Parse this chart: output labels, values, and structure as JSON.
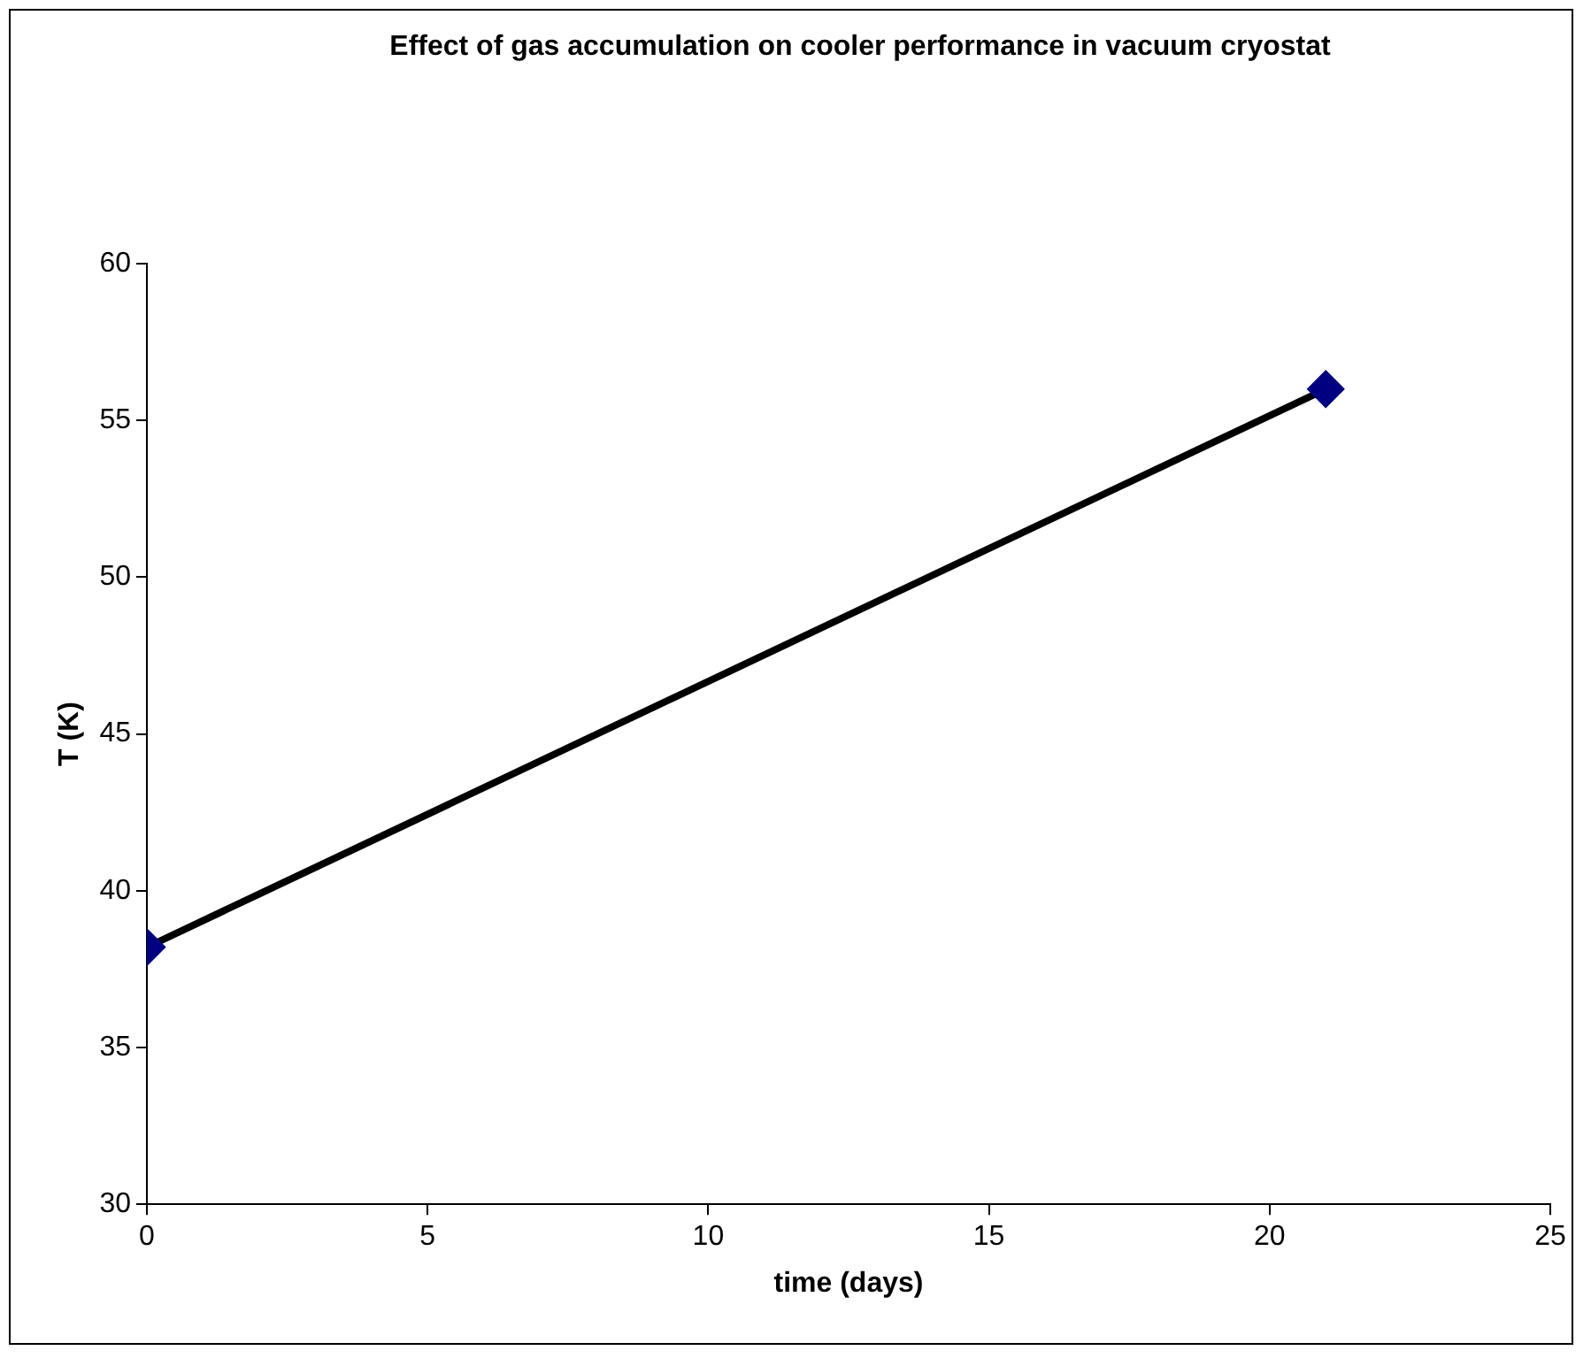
{
  "chart_data": {
    "type": "line",
    "title": "Effect of gas accumulation on cooler performance in vacuum cryostat",
    "xlabel": "time (days)",
    "ylabel": "T (K)",
    "x": [
      0,
      21
    ],
    "series": [
      {
        "color": "#000000",
        "colors": [
          "#000080",
          "#000080"
        ],
        "values": [
          38.2,
          56
        ]
      }
    ],
    "xlim": [
      0,
      25
    ],
    "xticks": [
      0,
      5,
      10,
      15,
      20,
      25
    ],
    "ylim": [
      30,
      60
    ],
    "yticks": [
      30,
      35,
      40,
      45,
      50,
      55,
      60
    ],
    "grid": false,
    "legend": false,
    "marker": "diamond",
    "line_style": "solid"
  }
}
